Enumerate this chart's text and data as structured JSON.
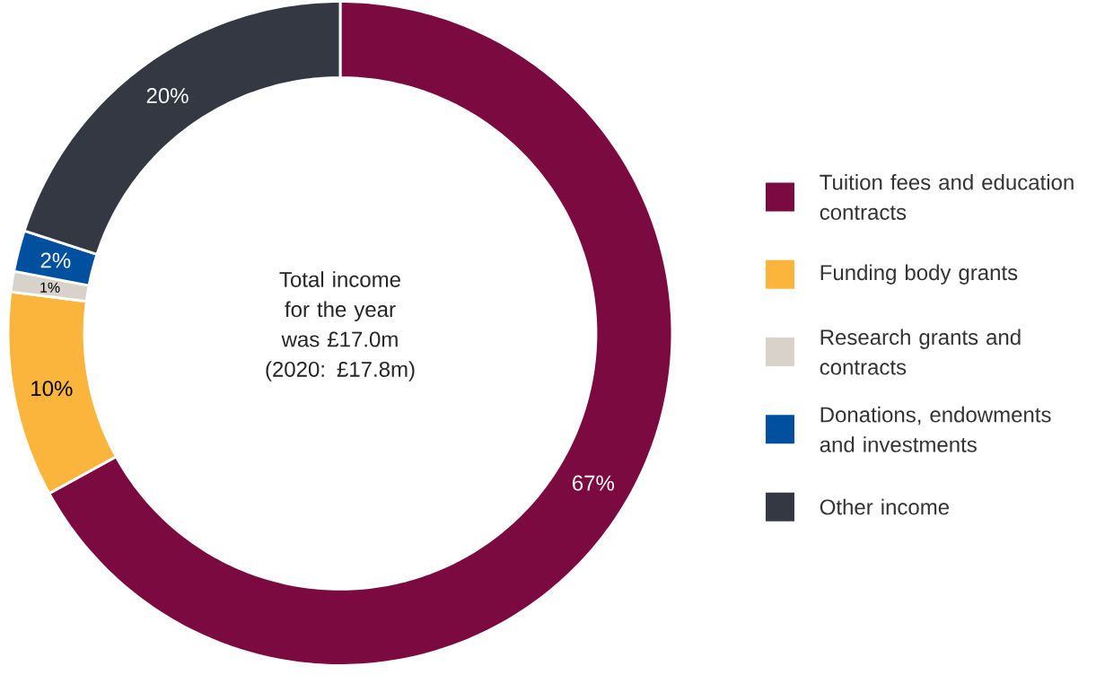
{
  "chart_data": {
    "type": "donut",
    "categories": [
      "Tuition fees and education contracts",
      "Funding body grants",
      "Research grants and contracts",
      "Donations, endowments and investments",
      "Other income"
    ],
    "values": [
      67,
      10,
      1,
      2,
      20
    ],
    "colors": [
      "#7a0a3f",
      "#fbb53c",
      "#d8d2ca",
      "#0050a0",
      "#333843"
    ],
    "value_labels": [
      "67%",
      "10%",
      "1%",
      "2%",
      "20%"
    ],
    "annotations": [
      "Total income for the year was £17.0m (2020: £17.8m)"
    ],
    "legend": "right"
  }
}
